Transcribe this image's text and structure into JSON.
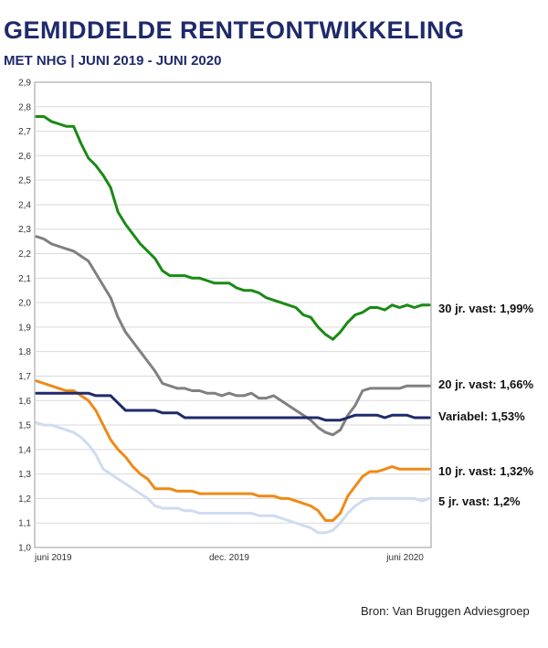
{
  "title": "GEMIDDELDE RENTEONTWIKKELING",
  "subtitle": "MET NHG | JUNI 2019 - JUNI 2020",
  "source": "Bron: Van Bruggen Adviesgroep",
  "chart_data": {
    "type": "line",
    "ylim": [
      1.0,
      2.9
    ],
    "y_ticks": [
      "1,0",
      "1,1",
      "1,2",
      "1,3",
      "1,4",
      "1,5",
      "1,6",
      "1,7",
      "1,8",
      "1,9",
      "2,0",
      "2,1",
      "2,2",
      "2,3",
      "2,4",
      "2,5",
      "2,6",
      "2,7",
      "2,8",
      "2,9"
    ],
    "x_ticks": [
      {
        "label": "juni 2019",
        "index": 0
      },
      {
        "label": "dec. 2019",
        "index": 26
      },
      {
        "label": "juni 2020",
        "index": 52
      }
    ],
    "grid": true,
    "series": [
      {
        "name": "30 jr. vast: 1,99%",
        "color": "#1a8a14",
        "values": [
          2.76,
          2.76,
          2.74,
          2.73,
          2.72,
          2.72,
          2.65,
          2.59,
          2.56,
          2.52,
          2.47,
          2.37,
          2.32,
          2.28,
          2.24,
          2.21,
          2.18,
          2.13,
          2.11,
          2.11,
          2.11,
          2.1,
          2.1,
          2.09,
          2.08,
          2.08,
          2.08,
          2.06,
          2.05,
          2.05,
          2.04,
          2.02,
          2.01,
          2.0,
          1.99,
          1.98,
          1.95,
          1.94,
          1.9,
          1.87,
          1.85,
          1.88,
          1.92,
          1.95,
          1.96,
          1.98,
          1.98,
          1.97,
          1.99,
          1.98,
          1.99,
          1.98,
          1.99,
          1.99
        ]
      },
      {
        "name": "20 jr. vast: 1,66%",
        "color": "#808080",
        "values": [
          2.27,
          2.26,
          2.24,
          2.23,
          2.22,
          2.21,
          2.19,
          2.17,
          2.12,
          2.07,
          2.02,
          1.94,
          1.88,
          1.84,
          1.8,
          1.76,
          1.72,
          1.67,
          1.66,
          1.65,
          1.65,
          1.64,
          1.64,
          1.63,
          1.63,
          1.62,
          1.63,
          1.62,
          1.62,
          1.63,
          1.61,
          1.61,
          1.62,
          1.6,
          1.58,
          1.56,
          1.54,
          1.52,
          1.49,
          1.47,
          1.46,
          1.48,
          1.54,
          1.58,
          1.64,
          1.65,
          1.65,
          1.65,
          1.65,
          1.65,
          1.66,
          1.66,
          1.66,
          1.66
        ]
      },
      {
        "name": "Variabel: 1,53%",
        "color": "#1f2a6b",
        "values": [
          1.63,
          1.63,
          1.63,
          1.63,
          1.63,
          1.63,
          1.63,
          1.63,
          1.62,
          1.62,
          1.62,
          1.59,
          1.56,
          1.56,
          1.56,
          1.56,
          1.56,
          1.55,
          1.55,
          1.55,
          1.53,
          1.53,
          1.53,
          1.53,
          1.53,
          1.53,
          1.53,
          1.53,
          1.53,
          1.53,
          1.53,
          1.53,
          1.53,
          1.53,
          1.53,
          1.53,
          1.53,
          1.53,
          1.53,
          1.52,
          1.52,
          1.52,
          1.53,
          1.54,
          1.54,
          1.54,
          1.54,
          1.53,
          1.54,
          1.54,
          1.54,
          1.53,
          1.53,
          1.53
        ]
      },
      {
        "name": "10 jr. vast: 1,32%",
        "color": "#ee8a17",
        "values": [
          1.68,
          1.67,
          1.66,
          1.65,
          1.64,
          1.64,
          1.62,
          1.6,
          1.56,
          1.5,
          1.44,
          1.4,
          1.37,
          1.33,
          1.3,
          1.28,
          1.24,
          1.24,
          1.24,
          1.23,
          1.23,
          1.23,
          1.22,
          1.22,
          1.22,
          1.22,
          1.22,
          1.22,
          1.22,
          1.22,
          1.21,
          1.21,
          1.21,
          1.2,
          1.2,
          1.19,
          1.18,
          1.17,
          1.15,
          1.11,
          1.11,
          1.14,
          1.21,
          1.25,
          1.29,
          1.31,
          1.31,
          1.32,
          1.33,
          1.32,
          1.32,
          1.32,
          1.32,
          1.32
        ]
      },
      {
        "name": "5 jr. vast: 1,2%",
        "color": "#cfdbf0",
        "values": [
          1.51,
          1.5,
          1.5,
          1.49,
          1.48,
          1.47,
          1.45,
          1.42,
          1.38,
          1.32,
          1.3,
          1.28,
          1.26,
          1.24,
          1.22,
          1.2,
          1.17,
          1.16,
          1.16,
          1.16,
          1.15,
          1.15,
          1.14,
          1.14,
          1.14,
          1.14,
          1.14,
          1.14,
          1.14,
          1.14,
          1.13,
          1.13,
          1.13,
          1.12,
          1.11,
          1.1,
          1.09,
          1.08,
          1.06,
          1.06,
          1.07,
          1.1,
          1.14,
          1.17,
          1.19,
          1.2,
          1.2,
          1.2,
          1.2,
          1.2,
          1.2,
          1.2,
          1.19,
          1.2
        ]
      }
    ],
    "end_labels": [
      "30 jr. vast: 1,99%",
      "20 jr. vast: 1,66%",
      "Variabel: 1,53%",
      "10 jr. vast: 1,32%",
      "5 jr. vast: 1,2%"
    ]
  }
}
